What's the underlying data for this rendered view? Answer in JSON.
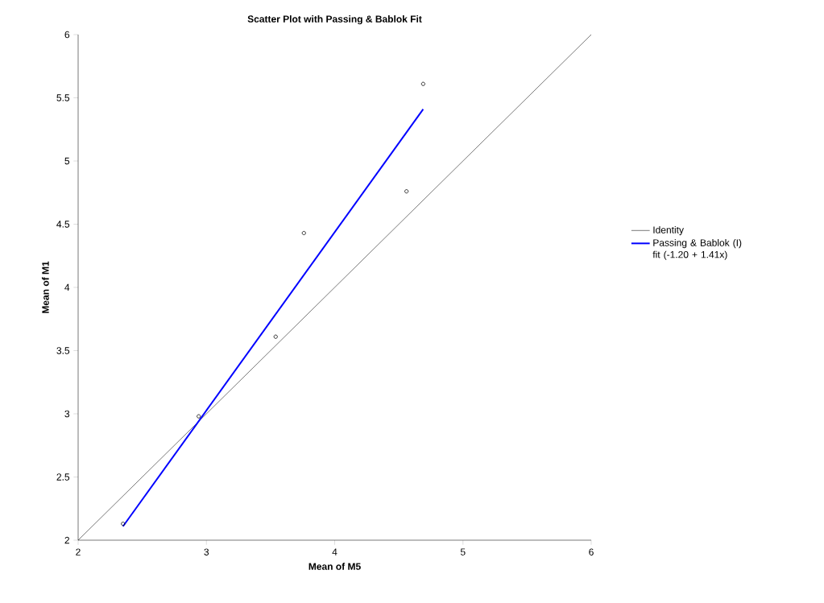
{
  "chart_data": {
    "type": "scatter",
    "title": "Scatter Plot with Passing & Bablok Fit",
    "xlabel": "Mean of M5",
    "ylabel": "Mean of M1",
    "xlim": [
      2,
      6
    ],
    "ylim": [
      2,
      6
    ],
    "xticks": [
      2,
      3,
      4,
      5,
      6
    ],
    "yticks": [
      2,
      2.5,
      3,
      3.5,
      4,
      4.5,
      5,
      5.5,
      6
    ],
    "grid": false,
    "legend": "right",
    "series": [
      {
        "color": "#000000",
        "marker": "circle",
        "x": [
          2.35,
          2.94,
          3.54,
          3.76,
          4.56,
          4.69
        ],
        "values": [
          2.13,
          2.98,
          3.61,
          4.43,
          4.76,
          5.61
        ]
      },
      {
        "type": "line",
        "name": "Identity",
        "color": "#000000",
        "marker": "none",
        "line_style": "solid",
        "x": [
          2,
          6
        ],
        "values": [
          2,
          6
        ]
      },
      {
        "type": "line",
        "name": "Passing & Bablok (I) fit (-1.20 + 1.41x)",
        "color": "#0000ff",
        "marker": "none",
        "line_style": "solid",
        "x": [
          2.35,
          4.69
        ],
        "values": [
          2.11,
          5.41
        ]
      }
    ]
  }
}
